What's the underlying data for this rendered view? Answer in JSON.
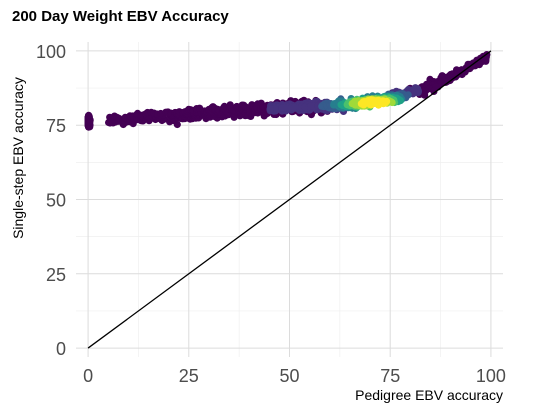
{
  "chart_data": {
    "type": "scatter",
    "title": "200 Day Weight EBV Accuracy",
    "xlabel": "Pedigree EBV accuracy",
    "ylabel": "Single-step EBV accuracy",
    "xlim": [
      -3,
      103
    ],
    "ylim": [
      -3,
      103
    ],
    "x_ticks": [
      0,
      25,
      50,
      75,
      100
    ],
    "y_ticks": [
      0,
      25,
      50,
      75,
      100
    ],
    "x_tick_labels": [
      "0",
      "25",
      "50",
      "75",
      "100"
    ],
    "y_tick_labels": [
      "0",
      "25",
      "50",
      "75",
      "100"
    ],
    "grid": true,
    "reference_line": {
      "x": [
        0,
        100
      ],
      "y": [
        0,
        100
      ],
      "color": "#000000"
    },
    "color_scale": "viridis",
    "density_trend": {
      "x": [
        0,
        5,
        10,
        20,
        30,
        40,
        50,
        60,
        65,
        70,
        75,
        80,
        85,
        90,
        95,
        99
      ],
      "y": [
        76,
        77,
        77.5,
        78,
        79,
        80,
        81,
        81.5,
        82,
        83,
        84,
        86,
        88,
        91,
        95,
        98
      ]
    },
    "density_peak": {
      "x": 71,
      "y": 82.5
    },
    "colors": {
      "low": "#440154",
      "mid": "#21918c",
      "high": "#fde725"
    }
  }
}
